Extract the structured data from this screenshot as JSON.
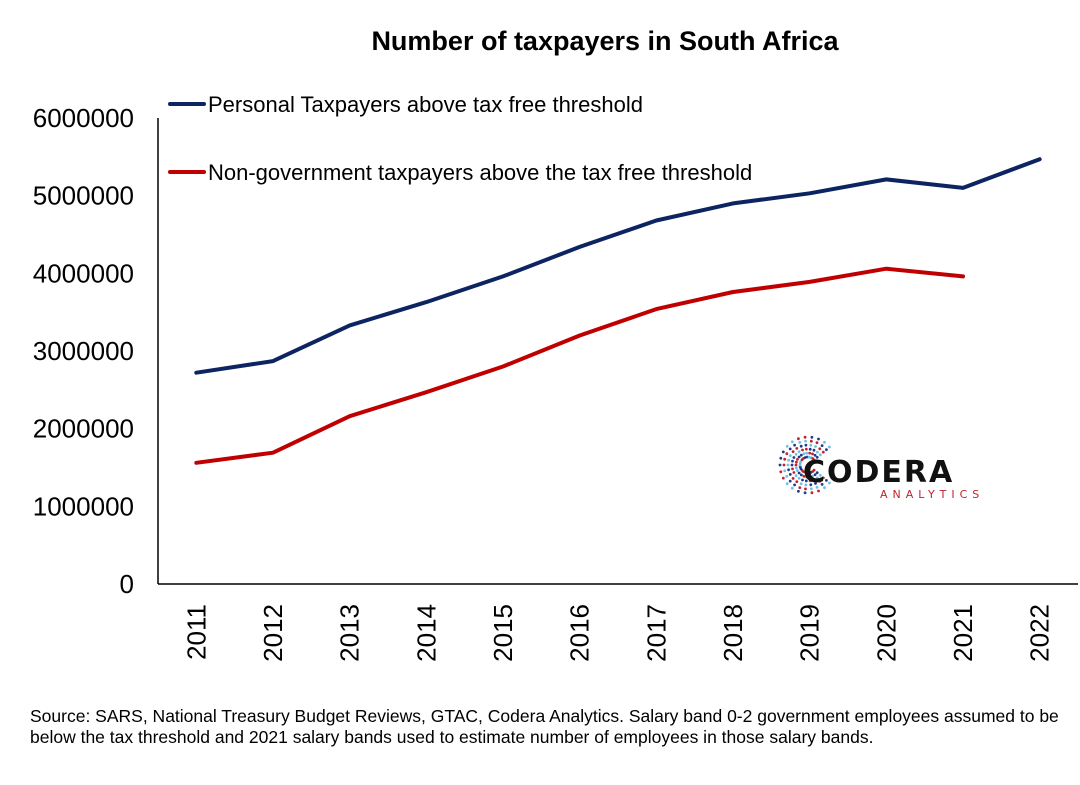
{
  "chart_data": {
    "type": "line",
    "title": "Number of taxpayers in South Africa",
    "xlabel": "",
    "ylabel": "",
    "categories": [
      "2011",
      "2012",
      "2013",
      "2014",
      "2015",
      "2016",
      "2017",
      "2018",
      "2019",
      "2020",
      "2021",
      "2022"
    ],
    "ylim": [
      0,
      6000000
    ],
    "yticks": [
      "0",
      "1000000",
      "2000000",
      "3000000",
      "4000000",
      "5000000",
      "6000000"
    ],
    "grid": false,
    "legend_position": "top-left",
    "series": [
      {
        "name": "Personal Taxpayers above tax free threshold",
        "color": "#0c2461",
        "values": [
          2720000,
          2870000,
          3330000,
          3630000,
          3960000,
          4340000,
          4680000,
          4900000,
          5030000,
          5210000,
          5100000,
          5470000
        ]
      },
      {
        "name": "Non-government taxpayers above the tax free threshold",
        "color": "#c00000",
        "values": [
          1560000,
          1690000,
          2160000,
          2470000,
          2800000,
          3200000,
          3540000,
          3760000,
          3890000,
          4060000,
          3960000,
          null
        ]
      }
    ]
  },
  "logo": {
    "name": "CODERA",
    "sub": "ANALYTICS",
    "colors": [
      "#c0222e",
      "#1f3a8a",
      "#6ec1e4"
    ]
  },
  "footer": {
    "source_note": "Source: SARS, National Treasury Budget Reviews, GTAC, Codera Analytics. Salary band 0-2 government employees assumed to be below the tax threshold and 2021 salary bands used to estimate number of employees in those salary bands."
  }
}
